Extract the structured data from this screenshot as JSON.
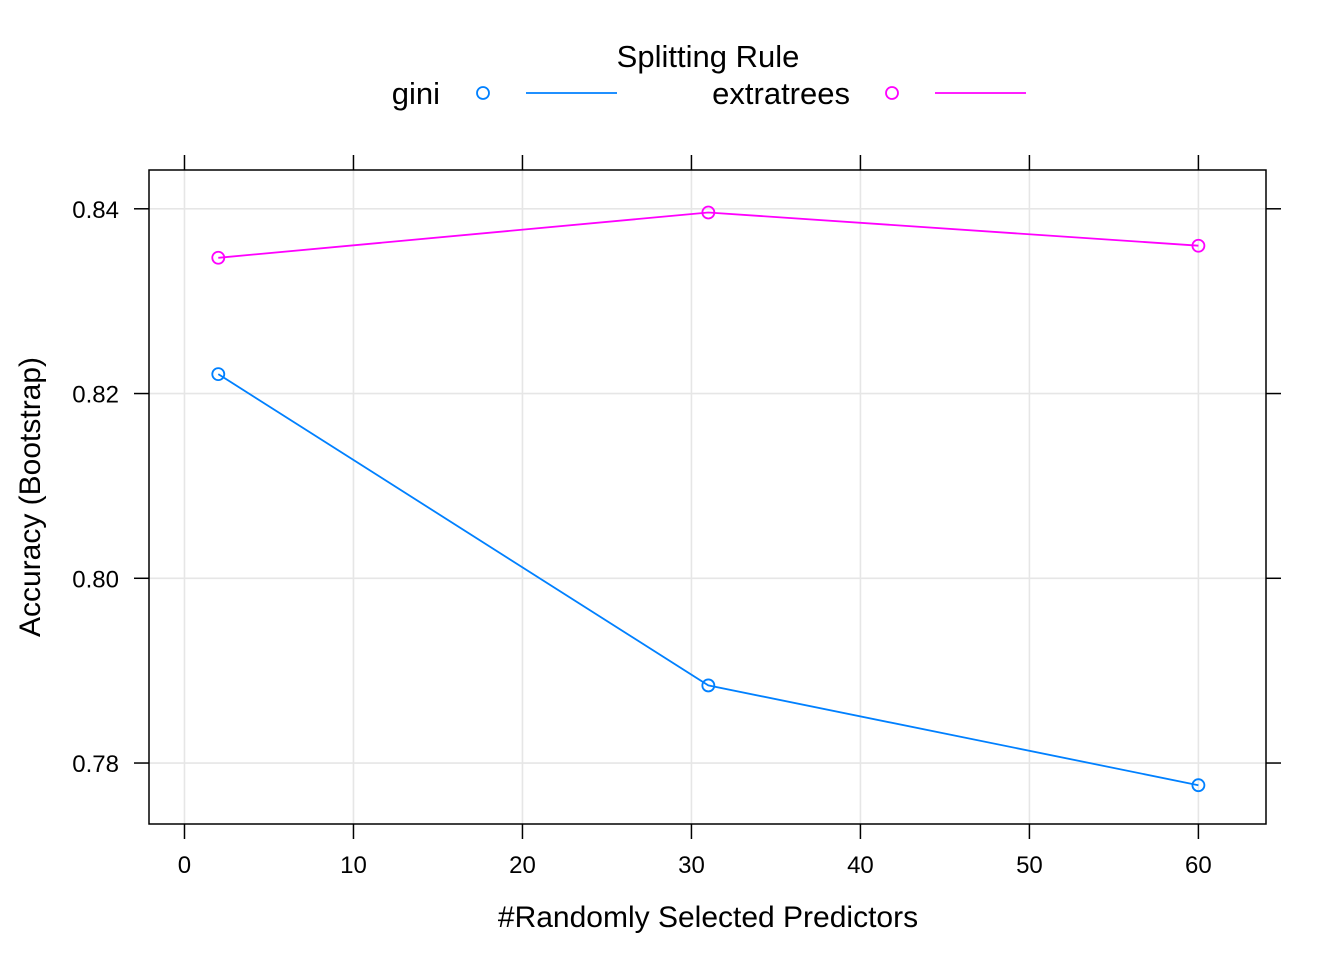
{
  "chart_data": {
    "type": "line",
    "title": "",
    "legend": {
      "title": "Splitting Rule",
      "placement": "top",
      "entries": [
        "gini",
        "extratrees"
      ]
    },
    "xlabel": "#Randomly Selected Predictors",
    "ylabel": "Accuracy (Bootstrap)",
    "xlim": [
      -2.1,
      64.0
    ],
    "ylim": [
      0.7734,
      0.8442
    ],
    "x_ticks": [
      0,
      10,
      20,
      30,
      40,
      50,
      60
    ],
    "y_ticks": [
      0.78,
      0.8,
      0.82,
      0.84
    ],
    "x_tick_labels": [
      "0",
      "10",
      "20",
      "30",
      "40",
      "50",
      "60"
    ],
    "y_tick_labels": [
      "0.78",
      "0.80",
      "0.82",
      "0.84"
    ],
    "grid": true,
    "x": [
      2,
      31,
      60
    ],
    "series": [
      {
        "name": "gini",
        "color": "#0080ff",
        "marker": "open-circle",
        "values": [
          0.8221,
          0.7884,
          0.7776
        ]
      },
      {
        "name": "extratrees",
        "color": "#ff00ff",
        "marker": "open-circle",
        "values": [
          0.8347,
          0.8396,
          0.836
        ]
      }
    ]
  }
}
